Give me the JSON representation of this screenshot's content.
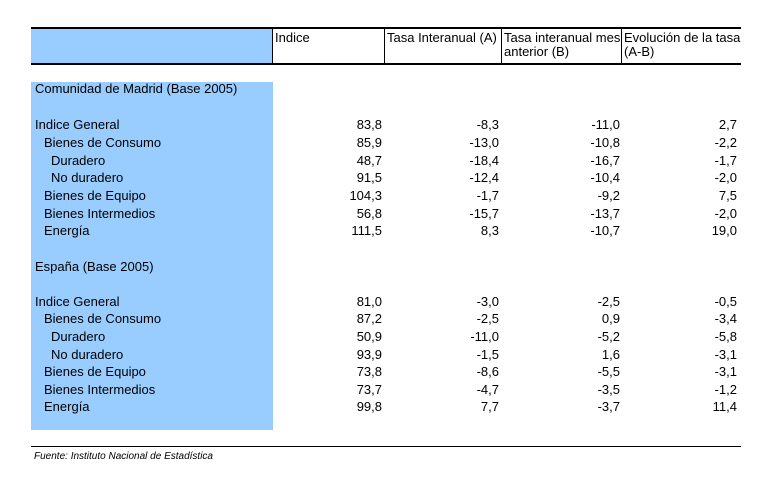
{
  "header": {
    "stub": "",
    "col1": "Indice",
    "col2": "Tasa Interanual (A)",
    "col3": "Tasa interanual mes anterior (B)",
    "col4": "Evolución de la tasa (A-B)"
  },
  "sections": [
    {
      "title": "Comunidad de Madrid (Base 2005)",
      "rows": [
        {
          "label": "Indice General",
          "indent": 0,
          "indice": "83,8",
          "tasa_a": "-8,3",
          "tasa_b": "-11,0",
          "evolucion": "2,7"
        },
        {
          "label": "Bienes de Consumo",
          "indent": 1,
          "indice": "85,9",
          "tasa_a": "-13,0",
          "tasa_b": "-10,8",
          "evolucion": "-2,2"
        },
        {
          "label": "Duradero",
          "indent": 2,
          "indice": "48,7",
          "tasa_a": "-18,4",
          "tasa_b": "-16,7",
          "evolucion": "-1,7"
        },
        {
          "label": "No duradero",
          "indent": 2,
          "indice": "91,5",
          "tasa_a": "-12,4",
          "tasa_b": "-10,4",
          "evolucion": "-2,0"
        },
        {
          "label": "Bienes de Equipo",
          "indent": 1,
          "indice": "104,3",
          "tasa_a": "-1,7",
          "tasa_b": "-9,2",
          "evolucion": "7,5"
        },
        {
          "label": "Bienes Intermedios",
          "indent": 1,
          "indice": "56,8",
          "tasa_a": "-15,7",
          "tasa_b": "-13,7",
          "evolucion": "-2,0"
        },
        {
          "label": "Energía",
          "indent": 1,
          "indice": "111,5",
          "tasa_a": "8,3",
          "tasa_b": "-10,7",
          "evolucion": "19,0"
        }
      ]
    },
    {
      "title": "España (Base 2005)",
      "rows": [
        {
          "label": "Indice General",
          "indent": 0,
          "indice": "81,0",
          "tasa_a": "-3,0",
          "tasa_b": "-2,5",
          "evolucion": "-0,5"
        },
        {
          "label": "Bienes de Consumo",
          "indent": 1,
          "indice": "87,2",
          "tasa_a": "-2,5",
          "tasa_b": "0,9",
          "evolucion": "-3,4"
        },
        {
          "label": "Duradero",
          "indent": 2,
          "indice": "50,9",
          "tasa_a": "-11,0",
          "tasa_b": "-5,2",
          "evolucion": "-5,8"
        },
        {
          "label": "No duradero",
          "indent": 2,
          "indice": "93,9",
          "tasa_a": "-1,5",
          "tasa_b": "1,6",
          "evolucion": "-3,1"
        },
        {
          "label": "Bienes de Equipo",
          "indent": 1,
          "indice": "73,8",
          "tasa_a": "-8,6",
          "tasa_b": "-5,5",
          "evolucion": "-3,1"
        },
        {
          "label": "Bienes Intermedios",
          "indent": 1,
          "indice": "73,7",
          "tasa_a": "-4,7",
          "tasa_b": "-3,5",
          "evolucion": "-1,2"
        },
        {
          "label": "Energía",
          "indent": 1,
          "indice": "99,8",
          "tasa_a": "7,7",
          "tasa_b": "-3,7",
          "evolucion": "11,4"
        }
      ]
    }
  ],
  "source": "Fuente: Instituto Nacional de Estadística",
  "colors": {
    "stub_background": "#99ccff",
    "rule": "#000000"
  }
}
